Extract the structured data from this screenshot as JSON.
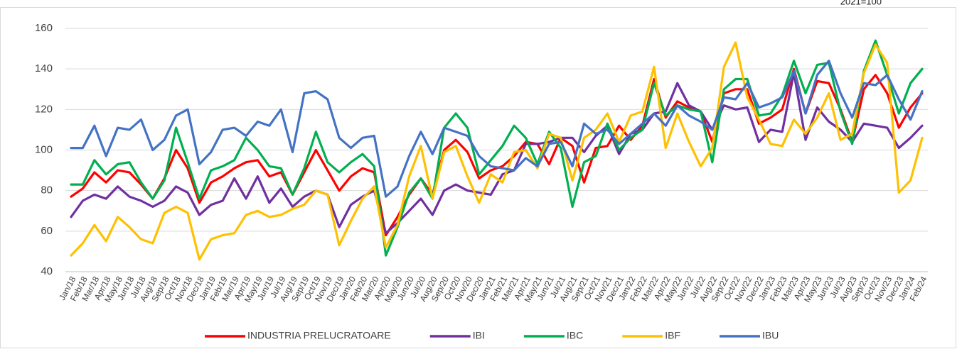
{
  "chart_data": {
    "type": "line",
    "subtitle": "2021=100",
    "categories": [
      "Jan/18",
      "Feb/18",
      "Mar/18",
      "Apr/18",
      "May/18",
      "Jun/18",
      "Jul/18",
      "Aug/18",
      "Sep/18",
      "Oct/18",
      "Nov/18",
      "Dec/18",
      "Jan/19",
      "Feb/19",
      "Mar/19",
      "Apr/19",
      "May/19",
      "Jun/19",
      "Jul/19",
      "Aug/19",
      "Sep/19",
      "Oct/19",
      "Nov/19",
      "Dec/19",
      "Jan/20",
      "Feb/20",
      "Mar/20",
      "Apr/20",
      "May/20",
      "Jun/20",
      "Jul/20",
      "Aug/20",
      "Sep/20",
      "Oct/20",
      "Nov/20",
      "Dec/20",
      "Jan/21",
      "Feb/21",
      "Mar/21",
      "Apr/21",
      "May/21",
      "Jun/21",
      "Jul/21",
      "Aug/21",
      "Sep/21",
      "Oct/21",
      "Nov/21",
      "Dec/21",
      "Jan/22",
      "Feb/22",
      "Mar/22",
      "Apr/22",
      "May/22",
      "Jun/22",
      "Jul/22",
      "Aug/22",
      "Sep/22",
      "Oct/22",
      "Nov/22",
      "Dec/22",
      "Jan/23",
      "Feb/23",
      "Mar/23",
      "Apr/23",
      "May/23",
      "Jun/23",
      "Jul/23",
      "Aug/23",
      "Sep/23",
      "Oct/23",
      "Nov/23",
      "Dec/23",
      "Jan/24",
      "Feb/24"
    ],
    "series": [
      {
        "name": "INDUSTRIA PRELUCRATOARE",
        "color": "#ff0000",
        "values": [
          77,
          81,
          89,
          84,
          90,
          89,
          83,
          76,
          86,
          100,
          91,
          74,
          84,
          87,
          91,
          94,
          95,
          87,
          89,
          78,
          89,
          100,
          90,
          80,
          87,
          91,
          89,
          58,
          67,
          78,
          86,
          78,
          100,
          105,
          99,
          86,
          90,
          92,
          97,
          104,
          103,
          93,
          106,
          102,
          84,
          101,
          102,
          112,
          105,
          112,
          135,
          116,
          124,
          121,
          119,
          104,
          128,
          130,
          130,
          113,
          116,
          120,
          140,
          118,
          134,
          133,
          120,
          104,
          130,
          137,
          128,
          111,
          121,
          128
        ]
      },
      {
        "name": "IBI",
        "color": "#7030a0",
        "values": [
          67,
          75,
          78,
          76,
          82,
          77,
          75,
          72,
          75,
          82,
          79,
          68,
          73,
          75,
          86,
          76,
          87,
          74,
          81,
          72,
          77,
          80,
          78,
          62,
          73,
          77,
          80,
          59,
          64,
          70,
          76,
          68,
          80,
          83,
          80,
          79,
          78,
          88,
          90,
          103,
          103,
          104,
          106,
          106,
          99,
          107,
          112,
          98,
          108,
          110,
          118,
          119,
          133,
          122,
          119,
          110,
          122,
          120,
          121,
          104,
          110,
          109,
          138,
          105,
          121,
          114,
          110,
          104,
          113,
          112,
          111,
          101,
          106,
          112
        ]
      },
      {
        "name": "IBC",
        "color": "#00b050",
        "values": [
          83,
          83,
          95,
          88,
          93,
          94,
          84,
          76,
          85,
          111,
          94,
          76,
          90,
          92,
          95,
          106,
          100,
          92,
          91,
          78,
          91,
          109,
          94,
          89,
          94,
          98,
          92,
          48,
          62,
          79,
          86,
          76,
          111,
          118,
          111,
          88,
          95,
          102,
          112,
          106,
          93,
          109,
          101,
          72,
          94,
          97,
          113,
          100,
          106,
          110,
          133,
          117,
          122,
          120,
          119,
          94,
          130,
          135,
          135,
          117,
          118,
          127,
          144,
          128,
          142,
          143,
          119,
          103,
          139,
          154,
          137,
          118,
          133,
          140
        ]
      },
      {
        "name": "IBF",
        "color": "#ffc000",
        "values": [
          48,
          54,
          63,
          55,
          67,
          62,
          56,
          54,
          69,
          72,
          69,
          46,
          56,
          58,
          59,
          68,
          70,
          67,
          68,
          71,
          73,
          80,
          78,
          53,
          65,
          76,
          82,
          52,
          63,
          87,
          102,
          76,
          99,
          102,
          87,
          74,
          88,
          84,
          99,
          100,
          91,
          108,
          106,
          85,
          106,
          110,
          118,
          104,
          117,
          119,
          141,
          101,
          118,
          104,
          92,
          101,
          141,
          153,
          126,
          115,
          103,
          102,
          115,
          108,
          116,
          128,
          105,
          108,
          138,
          152,
          143,
          79,
          85,
          106
        ]
      },
      {
        "name": "IBU",
        "color": "#4472c4",
        "values": [
          101,
          101,
          112,
          97,
          111,
          110,
          115,
          100,
          105,
          117,
          120,
          93,
          99,
          110,
          111,
          107,
          114,
          112,
          120,
          99,
          128,
          129,
          125,
          106,
          101,
          106,
          107,
          77,
          82,
          97,
          109,
          98,
          111,
          109,
          107,
          97,
          92,
          91,
          90,
          96,
          92,
          103,
          104,
          92,
          113,
          108,
          110,
          103,
          108,
          113,
          118,
          112,
          122,
          117,
          114,
          110,
          126,
          125,
          133,
          121,
          123,
          126,
          139,
          118,
          137,
          144,
          128,
          116,
          133,
          132,
          137,
          125,
          115,
          129
        ]
      }
    ],
    "ylim": [
      40,
      160
    ],
    "yticks": [
      40,
      60,
      80,
      100,
      120,
      140,
      160
    ],
    "grid": true,
    "legend": "bottom"
  }
}
